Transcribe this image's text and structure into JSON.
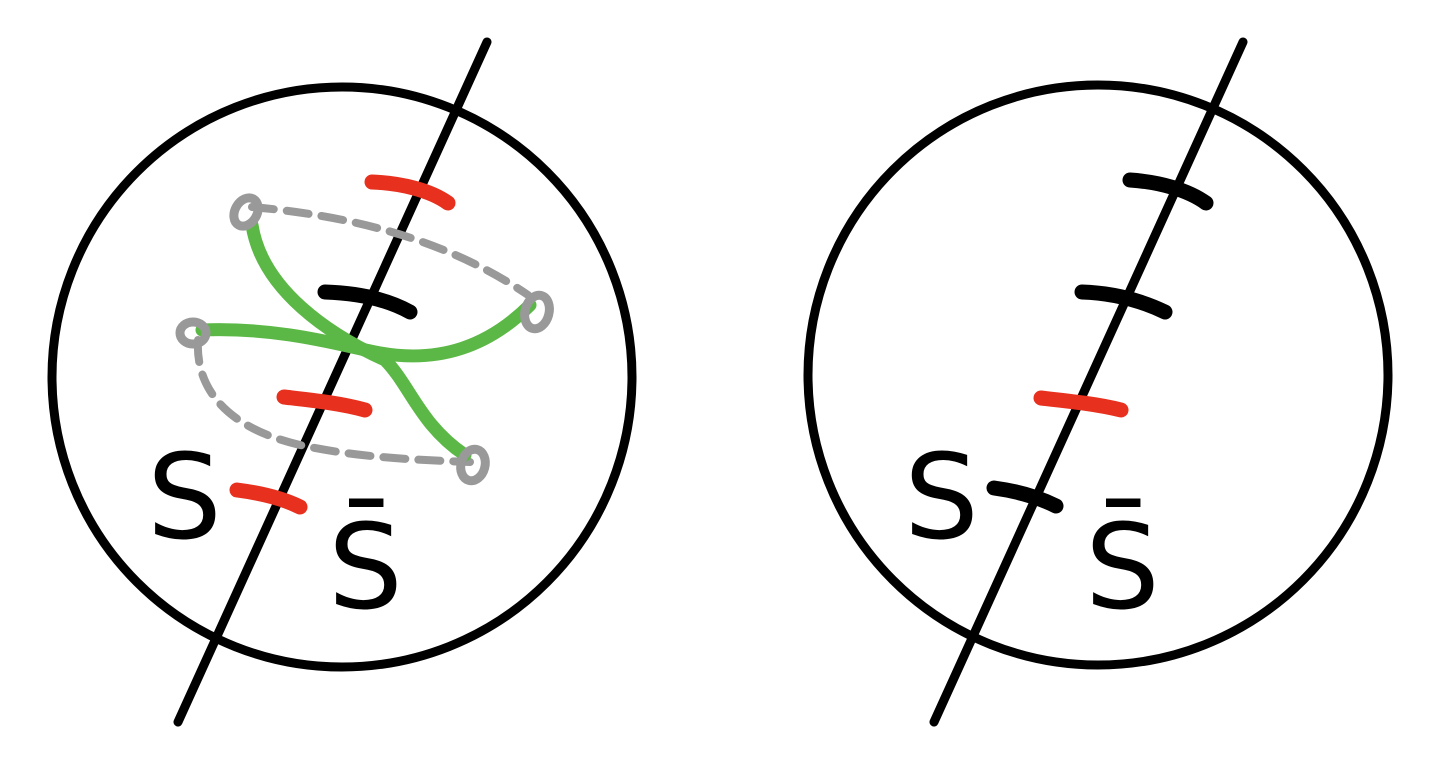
{
  "colors": {
    "ink": "#000000",
    "red_mark": "#e8301e",
    "green_path": "#5cb846",
    "gray_node": "#999999"
  },
  "panels": [
    {
      "side": "left",
      "region_labels": {
        "left": "S",
        "right": "S̄"
      },
      "cut_marks": [
        "red",
        "black",
        "red",
        "red"
      ],
      "has_green_paths": true,
      "has_gray_dashed_links": true,
      "gray_node_count": 4
    },
    {
      "side": "right",
      "region_labels": {
        "left": "S",
        "right": "S̄"
      },
      "cut_marks": [
        "black",
        "black",
        "red",
        "black"
      ],
      "has_green_paths": false,
      "has_gray_dashed_links": false,
      "gray_node_count": 0
    }
  ]
}
